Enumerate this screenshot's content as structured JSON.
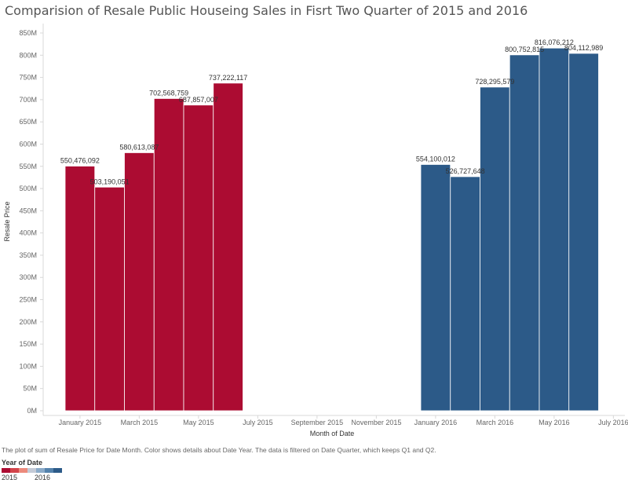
{
  "chart_data": {
    "type": "bar",
    "title": "Comparision of Resale Public Houseing Sales in Fisrt Two Quarter of 2015 and 2016",
    "xlabel": "Month of Date",
    "ylabel": "Resale Price",
    "ylim": [
      0,
      850000000
    ],
    "yticks": [
      {
        "value": 0,
        "label": "0M"
      },
      {
        "value": 50000000,
        "label": "50M"
      },
      {
        "value": 100000000,
        "label": "100M"
      },
      {
        "value": 150000000,
        "label": "150M"
      },
      {
        "value": 200000000,
        "label": "200M"
      },
      {
        "value": 250000000,
        "label": "250M"
      },
      {
        "value": 300000000,
        "label": "300M"
      },
      {
        "value": 350000000,
        "label": "350M"
      },
      {
        "value": 400000000,
        "label": "400M"
      },
      {
        "value": 450000000,
        "label": "450M"
      },
      {
        "value": 500000000,
        "label": "500M"
      },
      {
        "value": 550000000,
        "label": "550M"
      },
      {
        "value": 600000000,
        "label": "600M"
      },
      {
        "value": 650000000,
        "label": "650M"
      },
      {
        "value": 700000000,
        "label": "700M"
      },
      {
        "value": 750000000,
        "label": "750M"
      },
      {
        "value": 800000000,
        "label": "800M"
      },
      {
        "value": 850000000,
        "label": "850M"
      }
    ],
    "xticks": [
      {
        "month": 0,
        "label": "January 2015"
      },
      {
        "month": 2,
        "label": "March 2015"
      },
      {
        "month": 4,
        "label": "May 2015"
      },
      {
        "month": 6,
        "label": "July 2015"
      },
      {
        "month": 8,
        "label": "September 2015"
      },
      {
        "month": 10,
        "label": "November 2015"
      },
      {
        "month": 12,
        "label": "January 2016"
      },
      {
        "month": 14,
        "label": "March 2016"
      },
      {
        "month": 16,
        "label": "May 2016"
      },
      {
        "month": 18,
        "label": "July 2016"
      }
    ],
    "series": [
      {
        "name": "2015",
        "color": "#ac0c32",
        "points": [
          {
            "month": 0,
            "value": 550476092,
            "label": "550,476,092"
          },
          {
            "month": 1,
            "value": 503190051,
            "label": "503,190,051"
          },
          {
            "month": 2,
            "value": 580613087,
            "label": "580,613,087"
          },
          {
            "month": 3,
            "value": 702568759,
            "label": "702,568,759"
          },
          {
            "month": 4,
            "value": 687857007,
            "label": "687,857,007"
          },
          {
            "month": 5,
            "value": 737222117,
            "label": "737,222,117"
          }
        ]
      },
      {
        "name": "2016",
        "color": "#2c5a88",
        "points": [
          {
            "month": 12,
            "value": 554100012,
            "label": "554,100,012"
          },
          {
            "month": 13,
            "value": 526727648,
            "label": "526,727,648"
          },
          {
            "month": 14,
            "value": 728295579,
            "label": "728,295,579"
          },
          {
            "month": 15,
            "value": 800752815,
            "label": "800,752,815"
          },
          {
            "month": 16,
            "value": 816076212,
            "label": "816,076,212"
          },
          {
            "month": 17,
            "value": 804112989,
            "label": "804,112,989"
          }
        ]
      }
    ],
    "legend": {
      "title": "Year of Date",
      "min_label": "2015",
      "max_label": "2016",
      "swatch_colors": [
        "#ac0c32",
        "#d2444a",
        "#ec8a7c",
        "#c4cad6",
        "#8aaac8",
        "#5482ac",
        "#2c5a88"
      ]
    },
    "caption": "The plot of sum of Resale Price for Date Month.  Color shows details about Date Year. The data is filtered on Date Quarter, which keeps Q1 and Q2."
  }
}
